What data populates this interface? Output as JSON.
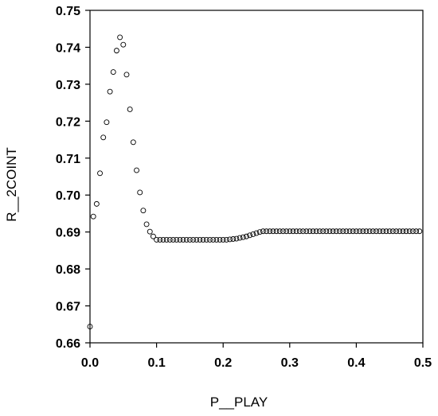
{
  "chart_data": {
    "type": "scatter",
    "xlabel": "P__PLAY",
    "ylabel": "R__2COINT",
    "xlim": [
      0.0,
      0.5
    ],
    "ylim": [
      0.66,
      0.75
    ],
    "xticks": [
      0.0,
      0.1,
      0.2,
      0.3,
      0.4,
      0.5
    ],
    "xtick_labels": [
      "0.0",
      "0.1",
      "0.2",
      "0.3",
      "0.4",
      "0.5"
    ],
    "yticks": [
      0.66,
      0.67,
      0.68,
      0.69,
      0.7,
      0.71,
      0.72,
      0.73,
      0.74,
      0.75
    ],
    "ytick_labels": [
      "0.66",
      "0.67",
      "0.68",
      "0.69",
      "0.70",
      "0.71",
      "0.72",
      "0.73",
      "0.74",
      "0.75"
    ],
    "grid": false,
    "marker": "open-circle",
    "series": [
      {
        "x": [
          0.0,
          0.005,
          0.01,
          0.015,
          0.02,
          0.025,
          0.03,
          0.035,
          0.04,
          0.045,
          0.05,
          0.055,
          0.06,
          0.065,
          0.07,
          0.075,
          0.08,
          0.085,
          0.09,
          0.095,
          0.1,
          0.105,
          0.11,
          0.115,
          0.12,
          0.125,
          0.13,
          0.135,
          0.14,
          0.145,
          0.15,
          0.155,
          0.16,
          0.165,
          0.17,
          0.175,
          0.18,
          0.185,
          0.19,
          0.195,
          0.2,
          0.205,
          0.21,
          0.215,
          0.22,
          0.225,
          0.23,
          0.235,
          0.24,
          0.245,
          0.25,
          0.255,
          0.26,
          0.265,
          0.27,
          0.275,
          0.28,
          0.285,
          0.29,
          0.295,
          0.3,
          0.305,
          0.31,
          0.315,
          0.32,
          0.325,
          0.33,
          0.335,
          0.34,
          0.345,
          0.35,
          0.355,
          0.36,
          0.365,
          0.37,
          0.375,
          0.38,
          0.385,
          0.39,
          0.395,
          0.4,
          0.405,
          0.41,
          0.415,
          0.42,
          0.425,
          0.43,
          0.435,
          0.44,
          0.445,
          0.45,
          0.455,
          0.46,
          0.465,
          0.47,
          0.475,
          0.48,
          0.485,
          0.49,
          0.495
        ],
        "y": [
          0.6644,
          0.6942,
          0.6976,
          0.7059,
          0.7156,
          0.7197,
          0.728,
          0.7333,
          0.7391,
          0.7427,
          0.7407,
          0.7326,
          0.7232,
          0.7143,
          0.7067,
          0.7007,
          0.6958,
          0.6921,
          0.6901,
          0.6888,
          0.6879,
          0.6879,
          0.6879,
          0.6879,
          0.6879,
          0.6879,
          0.6879,
          0.6879,
          0.6879,
          0.6879,
          0.6879,
          0.6879,
          0.6879,
          0.6879,
          0.6879,
          0.6879,
          0.6879,
          0.6879,
          0.6879,
          0.6879,
          0.6879,
          0.6879,
          0.688,
          0.6881,
          0.6882,
          0.6884,
          0.6886,
          0.6888,
          0.6891,
          0.6894,
          0.6897,
          0.69,
          0.6902,
          0.6902,
          0.6902,
          0.6902,
          0.6902,
          0.6902,
          0.6902,
          0.6902,
          0.6902,
          0.6902,
          0.6902,
          0.6902,
          0.6902,
          0.6902,
          0.6902,
          0.6902,
          0.6902,
          0.6902,
          0.6902,
          0.6902,
          0.6902,
          0.6902,
          0.6902,
          0.6902,
          0.6902,
          0.6902,
          0.6902,
          0.6902,
          0.6902,
          0.6902,
          0.6902,
          0.6902,
          0.6902,
          0.6902,
          0.6902,
          0.6902,
          0.6902,
          0.6902,
          0.6902,
          0.6902,
          0.6902,
          0.6902,
          0.6902,
          0.6902,
          0.6902,
          0.6902,
          0.6902,
          0.6902
        ]
      }
    ]
  }
}
